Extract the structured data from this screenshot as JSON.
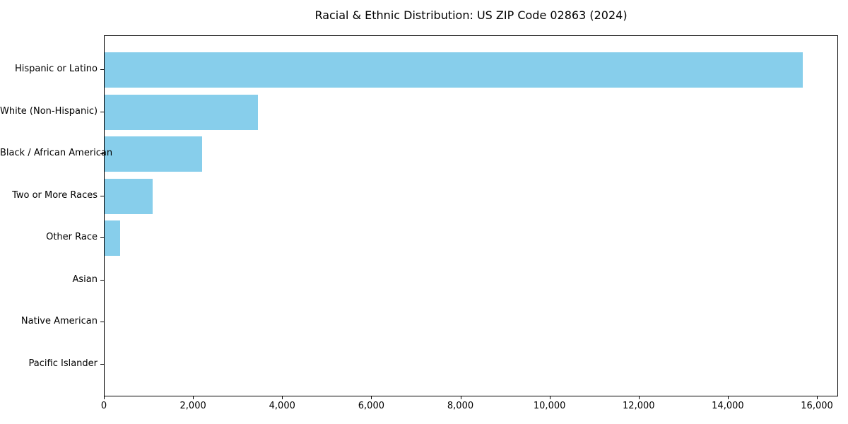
{
  "chart_data": {
    "type": "bar",
    "orientation": "horizontal",
    "title": "Racial & Ethnic Distribution: US ZIP Code 02863 (2024)",
    "categories": [
      "Hispanic or Latino",
      "White (Non-Hispanic)",
      "Black / African American",
      "Two or More Races",
      "Other Race",
      "Asian",
      "Native American",
      "Pacific Islander"
    ],
    "values": [
      15690,
      3440,
      2200,
      1080,
      350,
      0,
      0,
      0
    ],
    "xlabel": "",
    "ylabel": "",
    "xlim": [
      0,
      16475
    ],
    "xticks": [
      0,
      2000,
      4000,
      6000,
      8000,
      10000,
      12000,
      14000,
      16000
    ],
    "xtick_labels": [
      "0",
      "2,000",
      "4,000",
      "6,000",
      "8,000",
      "10,000",
      "12,000",
      "14,000",
      "16,000"
    ],
    "bar_color": "#87ceeb",
    "axis_color": "#000000",
    "text_color": "#000000",
    "background_color": "#ffffff",
    "grid": false,
    "legend": null
  }
}
